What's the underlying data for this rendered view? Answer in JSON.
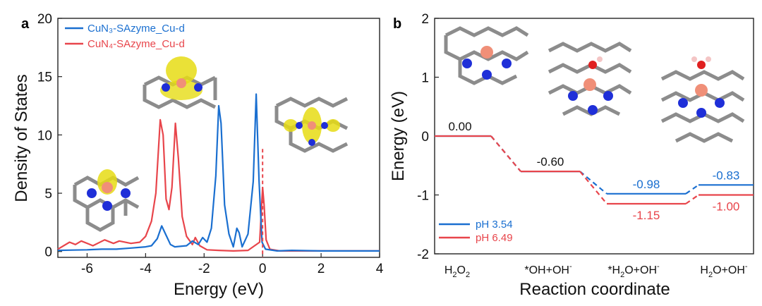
{
  "colors": {
    "blue": "#1a6fd0",
    "red": "#e8454b",
    "copper": "#f08f78",
    "nitrogen": "#1f2fd8",
    "oxygen": "#e02020",
    "graphene": "#8c8c8c",
    "density": "#e6dc14"
  },
  "panels": {
    "a": "a",
    "b": "b"
  },
  "chart_data": [
    {
      "panel": "a",
      "type": "line",
      "xlabel": "Energy (eV)",
      "ylabel": "Density of States",
      "xlim": [
        -7,
        4
      ],
      "ylim": [
        -0.5,
        20
      ],
      "xticks": [
        "-6",
        "-4",
        "-2",
        "0",
        "2",
        "4"
      ],
      "yticks": [
        "0",
        "5",
        "10",
        "15",
        "20"
      ],
      "fermi_level": 0,
      "legend_position": "top-left",
      "series": [
        {
          "name": "CuN₃-SAzyme_Cu-d",
          "color": "#1a6fd0",
          "points": [
            [
              -7,
              0.1
            ],
            [
              -6.5,
              0.12
            ],
            [
              -6,
              0.15
            ],
            [
              -5.5,
              0.2
            ],
            [
              -5,
              0.2
            ],
            [
              -4.5,
              0.3
            ],
            [
              -4,
              0.4
            ],
            [
              -3.8,
              0.5
            ],
            [
              -3.6,
              1.1
            ],
            [
              -3.45,
              2.2
            ],
            [
              -3.3,
              1.4
            ],
            [
              -3.15,
              0.6
            ],
            [
              -3,
              0.4
            ],
            [
              -2.6,
              0.5
            ],
            [
              -2.4,
              0.9
            ],
            [
              -2.2,
              0.6
            ],
            [
              -2.05,
              1.2
            ],
            [
              -1.9,
              0.8
            ],
            [
              -1.75,
              2.0
            ],
            [
              -1.6,
              6.5
            ],
            [
              -1.5,
              12.5
            ],
            [
              -1.42,
              11.0
            ],
            [
              -1.3,
              4.0
            ],
            [
              -1.15,
              1.5
            ],
            [
              -1.0,
              0.4
            ],
            [
              -0.88,
              2.0
            ],
            [
              -0.8,
              1.6
            ],
            [
              -0.7,
              0.4
            ],
            [
              -0.5,
              1.5
            ],
            [
              -0.32,
              6.0
            ],
            [
              -0.22,
              13.5
            ],
            [
              -0.12,
              6.0
            ],
            [
              -0.02,
              0.8
            ],
            [
              0.1,
              0.2
            ],
            [
              0.5,
              0.05
            ],
            [
              1,
              0.1
            ],
            [
              2,
              0.05
            ],
            [
              3,
              0.05
            ],
            [
              4,
              0.05
            ]
          ]
        },
        {
          "name": "CuN₄-SAzyme_Cu-d",
          "color": "#e8454b",
          "points": [
            [
              -7,
              0.2
            ],
            [
              -6.6,
              0.8
            ],
            [
              -6.4,
              0.6
            ],
            [
              -6.2,
              0.9
            ],
            [
              -5.8,
              0.5
            ],
            [
              -5.4,
              1.0
            ],
            [
              -5.1,
              0.7
            ],
            [
              -4.9,
              0.9
            ],
            [
              -4.5,
              0.7
            ],
            [
              -4.2,
              0.8
            ],
            [
              -4.0,
              1.3
            ],
            [
              -3.8,
              2.6
            ],
            [
              -3.65,
              5.0
            ],
            [
              -3.5,
              11.3
            ],
            [
              -3.4,
              10.0
            ],
            [
              -3.3,
              4.5
            ],
            [
              -3.2,
              3.6
            ],
            [
              -3.1,
              5.5
            ],
            [
              -2.98,
              11.0
            ],
            [
              -2.88,
              8.0
            ],
            [
              -2.75,
              3.0
            ],
            [
              -2.6,
              1.3
            ],
            [
              -2.4,
              0.6
            ],
            [
              -2.3,
              1.2
            ],
            [
              -2.15,
              0.5
            ],
            [
              -1.9,
              0.15
            ],
            [
              -1.5,
              0.1
            ],
            [
              -1.0,
              0.05
            ],
            [
              -0.5,
              0.1
            ],
            [
              -0.1,
              0.8
            ],
            [
              0.0,
              5.5
            ],
            [
              0.05,
              4.0
            ],
            [
              0.12,
              1.0
            ],
            [
              0.25,
              0.2
            ],
            [
              0.6,
              0.05
            ],
            [
              1,
              0.05
            ],
            [
              2,
              0.05
            ],
            [
              3,
              0.05
            ],
            [
              4,
              0.05
            ]
          ]
        }
      ]
    },
    {
      "panel": "b",
      "type": "line",
      "subtype": "energy-profile",
      "xlabel": "Reaction coordinate",
      "ylabel": "Energy (eV)",
      "ylim": [
        -2,
        2
      ],
      "yticks": [
        "-2",
        "-1",
        "0",
        "1",
        "2"
      ],
      "categories": [
        {
          "base": "H",
          "sub1": "2",
          "mid": "O",
          "sub2": "2",
          "rest": "",
          "sup": ""
        },
        {
          "base": "*OH+OH",
          "sub1": "",
          "mid": "",
          "sub2": "",
          "rest": "",
          "sup": "-"
        },
        {
          "base": "*H",
          "sub1": "2",
          "mid": "O+OH",
          "sub2": "",
          "rest": "",
          "sup": "-"
        },
        {
          "base": "H",
          "sub1": "2",
          "mid": "O+OH",
          "sub2": "",
          "rest": "",
          "sup": "-"
        }
      ],
      "legend_position": "bottom-left",
      "series": [
        {
          "name": "pH 3.54",
          "color": "#1a6fd0",
          "values": [
            0.0,
            -0.6,
            -0.98,
            -0.83
          ],
          "labels": [
            "0.00",
            "-0.60",
            "-0.98",
            "-0.83"
          ]
        },
        {
          "name": "pH 6.49",
          "color": "#e8454b",
          "values": [
            0.0,
            -0.6,
            -1.15,
            -1.0
          ],
          "labels": [
            "0.00",
            "-0.60",
            "-1.15",
            "-1.00"
          ]
        }
      ]
    }
  ]
}
